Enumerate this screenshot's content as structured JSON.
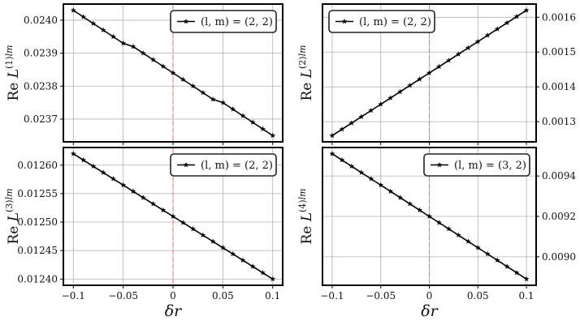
{
  "chart_data": [
    {
      "type": "line",
      "ylabel": "Re L^(1)lm",
      "ylabel_parts": {
        "prefix": "Re ",
        "symbol": "L",
        "sup": "(1)",
        "suffix": "lm"
      },
      "legend": "(l, m) = (2, 2)",
      "legend_placement": "top-right",
      "yaxis_side": "left",
      "x": [
        -0.1,
        -0.09,
        -0.08,
        -0.07,
        -0.06,
        -0.05,
        -0.04,
        -0.03,
        -0.02,
        -0.01,
        0.0,
        0.01,
        0.02,
        0.03,
        0.04,
        0.05,
        0.06,
        0.07,
        0.08,
        0.09,
        0.1
      ],
      "y": [
        0.02403,
        0.02401,
        0.02399,
        0.02397,
        0.02395,
        0.02393,
        0.02392,
        0.0239,
        0.02388,
        0.02386,
        0.02384,
        0.02382,
        0.0238,
        0.02378,
        0.02376,
        0.02375,
        0.02373,
        0.02371,
        0.02369,
        0.02367,
        0.02365
      ],
      "xlim": [
        -0.11,
        0.11
      ],
      "ylim": [
        0.023631,
        0.024049
      ],
      "yticks": [
        0.0237,
        0.0238,
        0.0239,
        0.024
      ],
      "ytick_labels": [
        "0.0237",
        "0.0238",
        "0.0239",
        "0.0240"
      ],
      "xticks": [
        -0.1,
        -0.05,
        0,
        0.05,
        0.1
      ],
      "grid": true,
      "vline_x": 0
    },
    {
      "type": "line",
      "ylabel": "Re L^(2)lm",
      "ylabel_parts": {
        "prefix": "Re ",
        "symbol": "L",
        "sup": "(2)",
        "suffix": "lm"
      },
      "legend": "(l, m) = (2, 2)",
      "legend_placement": "top-left",
      "yaxis_side": "right",
      "x": [
        -0.1,
        -0.09,
        -0.08,
        -0.07,
        -0.06,
        -0.05,
        -0.04,
        -0.03,
        -0.02,
        -0.01,
        0.0,
        0.01,
        0.02,
        0.03,
        0.04,
        0.05,
        0.06,
        0.07,
        0.08,
        0.09,
        0.1
      ],
      "y": [
        0.00126,
        0.001278,
        0.001296,
        0.001314,
        0.001332,
        0.00135,
        0.001368,
        0.001386,
        0.001404,
        0.001422,
        0.00144,
        0.001458,
        0.001476,
        0.001494,
        0.001512,
        0.00153,
        0.001548,
        0.001566,
        0.001584,
        0.001602,
        0.00162
      ],
      "xlim": [
        -0.11,
        0.11
      ],
      "ylim": [
        0.001242,
        0.001638
      ],
      "yticks": [
        0.0013,
        0.0014,
        0.0015,
        0.0016
      ],
      "ytick_labels": [
        "0.0013",
        "0.0014",
        "0.0015",
        "0.0016"
      ],
      "xticks": [
        -0.1,
        -0.05,
        0,
        0.05,
        0.1
      ],
      "grid": true,
      "vline_x": 0
    },
    {
      "type": "line",
      "ylabel": "Re L^(3)lm",
      "ylabel_parts": {
        "prefix": "Re ",
        "symbol": "L",
        "sup": "(3)",
        "suffix": "lm"
      },
      "legend": "(l, m) = (2, 2)",
      "legend_placement": "top-right",
      "yaxis_side": "left",
      "x": [
        -0.1,
        -0.09,
        -0.08,
        -0.07,
        -0.06,
        -0.05,
        -0.04,
        -0.03,
        -0.02,
        -0.01,
        0.0,
        0.01,
        0.02,
        0.03,
        0.04,
        0.05,
        0.06,
        0.07,
        0.08,
        0.09,
        0.1
      ],
      "y": [
        0.01262,
        0.012609,
        0.012598,
        0.012587,
        0.012576,
        0.012565,
        0.012554,
        0.012543,
        0.012532,
        0.012521,
        0.01251,
        0.012499,
        0.012488,
        0.012477,
        0.012466,
        0.012455,
        0.012444,
        0.012433,
        0.012422,
        0.012411,
        0.0124
      ],
      "xlim": [
        -0.11,
        0.11
      ],
      "ylim": [
        0.012389,
        0.012631
      ],
      "yticks": [
        0.0124,
        0.01245,
        0.0125,
        0.01255,
        0.0126
      ],
      "ytick_labels": [
        "0.01240",
        "0.01245",
        "0.01250",
        "0.01255",
        "0.01260"
      ],
      "xticks": [
        -0.1,
        -0.05,
        0,
        0.05,
        0.1
      ],
      "xtick_labels": [
        "−0.1",
        "−0.05",
        "0",
        "0.05",
        "0.1"
      ],
      "xlabel": "δr",
      "grid": true,
      "vline_x": 0
    },
    {
      "type": "line",
      "ylabel": "Re L^(4)lm",
      "ylabel_parts": {
        "prefix": "Re ",
        "symbol": "L",
        "sup": "(4)",
        "suffix": "lm"
      },
      "legend": "(l, m) = (3, 2)",
      "legend_placement": "top-right",
      "yaxis_side": "right",
      "x": [
        -0.1,
        -0.09,
        -0.08,
        -0.07,
        -0.06,
        -0.05,
        -0.04,
        -0.03,
        -0.02,
        -0.01,
        0.0,
        0.01,
        0.02,
        0.03,
        0.04,
        0.05,
        0.06,
        0.07,
        0.08,
        0.09,
        0.1
      ],
      "y": [
        0.00951,
        0.009479,
        0.009448,
        0.009417,
        0.009386,
        0.009355,
        0.009324,
        0.009293,
        0.009262,
        0.009231,
        0.0092,
        0.009169,
        0.009138,
        0.009107,
        0.009076,
        0.009045,
        0.009014,
        0.008983,
        0.008952,
        0.008921,
        0.00889
      ],
      "xlim": [
        -0.11,
        0.11
      ],
      "ylim": [
        0.008859,
        0.009541
      ],
      "yticks": [
        0.009,
        0.0092,
        0.0094
      ],
      "ytick_labels": [
        "0.0090",
        "0.0092",
        "0.0094"
      ],
      "xticks": [
        -0.1,
        -0.05,
        0,
        0.05,
        0.1
      ],
      "xtick_labels": [
        "−0.1",
        "−0.05",
        "0",
        "0.05",
        "0.1"
      ],
      "xlabel": "δr",
      "grid": true,
      "vline_x": 0
    }
  ],
  "colors": {
    "line": "#000000",
    "grid": "#b0b0b0",
    "vline": "#e08080",
    "frame": "#000000"
  }
}
